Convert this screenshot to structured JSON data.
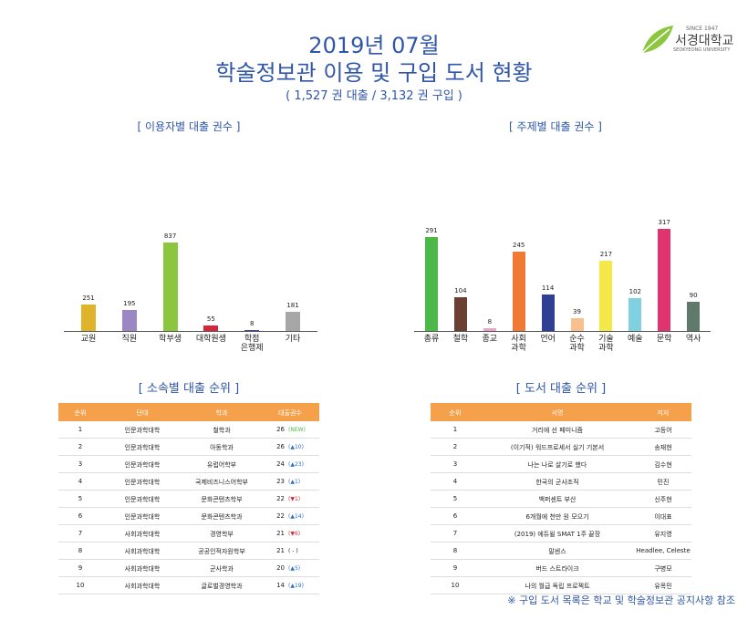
{
  "header": {
    "date": "2019년 07월",
    "title": "학술정보관 이용 및 구입 도서 현황",
    "subtitle": "( 1,527 권  대출 / 3,132 권 구입 )"
  },
  "logo": {
    "since": "SINCE 1947",
    "name": "서경대학교",
    "english": "SEOKYEONG UNIVERSITY"
  },
  "chart_data": [
    {
      "type": "bar",
      "title": "[ 이용자별 대출 권수 ]",
      "categories": [
        "교원",
        "직원",
        "학부생",
        "대학원생",
        "학점\n은행제",
        "기타"
      ],
      "values": [
        251,
        195,
        837,
        55,
        8,
        181
      ],
      "colors": [
        "#e0b42a",
        "#9b87c4",
        "#8cc63f",
        "#d6273a",
        "#3a4a9c",
        "#a6a6a6"
      ]
    },
    {
      "type": "bar",
      "title": "[ 주제별 대출 권수 ]",
      "categories": [
        "총류",
        "철학",
        "종교",
        "사회\n과학",
        "언어",
        "순수\n과학",
        "기술\n과학",
        "예술",
        "문학",
        "역사"
      ],
      "values": [
        291,
        104,
        8,
        245,
        114,
        39,
        217,
        102,
        317,
        90
      ],
      "colors": [
        "#4cb848",
        "#6b3f31",
        "#e9a5c9",
        "#f07a33",
        "#2e3f94",
        "#f8c08f",
        "#f5e94a",
        "#7fd0e0",
        "#e0336f",
        "#5f7a6b"
      ]
    }
  ],
  "tables": [
    {
      "title": "[ 소속별 대출 순위 ]",
      "columns": [
        "순위",
        "단대",
        "학과",
        "대출권수"
      ],
      "rows": [
        [
          "1",
          "인문과학대학",
          "철학과",
          "26",
          "(NEW)"
        ],
        [
          "2",
          "인문과학대학",
          "아동학과",
          "26",
          "(▲10)"
        ],
        [
          "3",
          "인문과학대학",
          "유럽어학부",
          "24",
          "(▲23)"
        ],
        [
          "4",
          "인문과학대학",
          "국제비즈니스어학부",
          "23",
          "(▲1)"
        ],
        [
          "5",
          "인문과학대학",
          "문화콘텐츠학부",
          "22",
          "(▼1)"
        ],
        [
          "6",
          "인문과학대학",
          "문화콘텐츠학과",
          "22",
          "(▲14)"
        ],
        [
          "7",
          "사회과학대학",
          "경영학부",
          "21",
          "(▼6)"
        ],
        [
          "8",
          "사회과학대학",
          "공공인적자원학부",
          "21",
          "( - )"
        ],
        [
          "9",
          "사회과학대학",
          "군사학과",
          "20",
          "(▲5)"
        ],
        [
          "10",
          "사회과학대학",
          "글로벌경영학과",
          "14",
          "(▲19)"
        ]
      ]
    },
    {
      "title": "[ 도서 대출 순위 ]",
      "columns": [
        "순위",
        "서명",
        "저자"
      ],
      "rows": [
        [
          "1",
          "거리에 선 페미니즘",
          "고등어"
        ],
        [
          "2",
          "(이기적) 워드프로세서 실기 기본서",
          "송재현"
        ],
        [
          "3",
          "나는 나로 살기로 했다",
          "김수현"
        ],
        [
          "4",
          "한국의 군사조직",
          "민진"
        ],
        [
          "5",
          "백퍼센트 부산",
          "신주현"
        ],
        [
          "6",
          "6개월에 천만 원 모으기",
          "이대표"
        ],
        [
          "7",
          "(2019) 에듀윌 SMAT 1주 끝장",
          "유지영"
        ],
        [
          "8",
          "말센스",
          "Headlee, Celeste"
        ],
        [
          "9",
          "버드 스트라이크",
          "구병모"
        ],
        [
          "10",
          "나의 월급 독립 프로젝트",
          "유목민"
        ]
      ]
    }
  ],
  "footnote": "※ 구입 도서 목록은 학교 및 학술정보관 공지사항 참조"
}
